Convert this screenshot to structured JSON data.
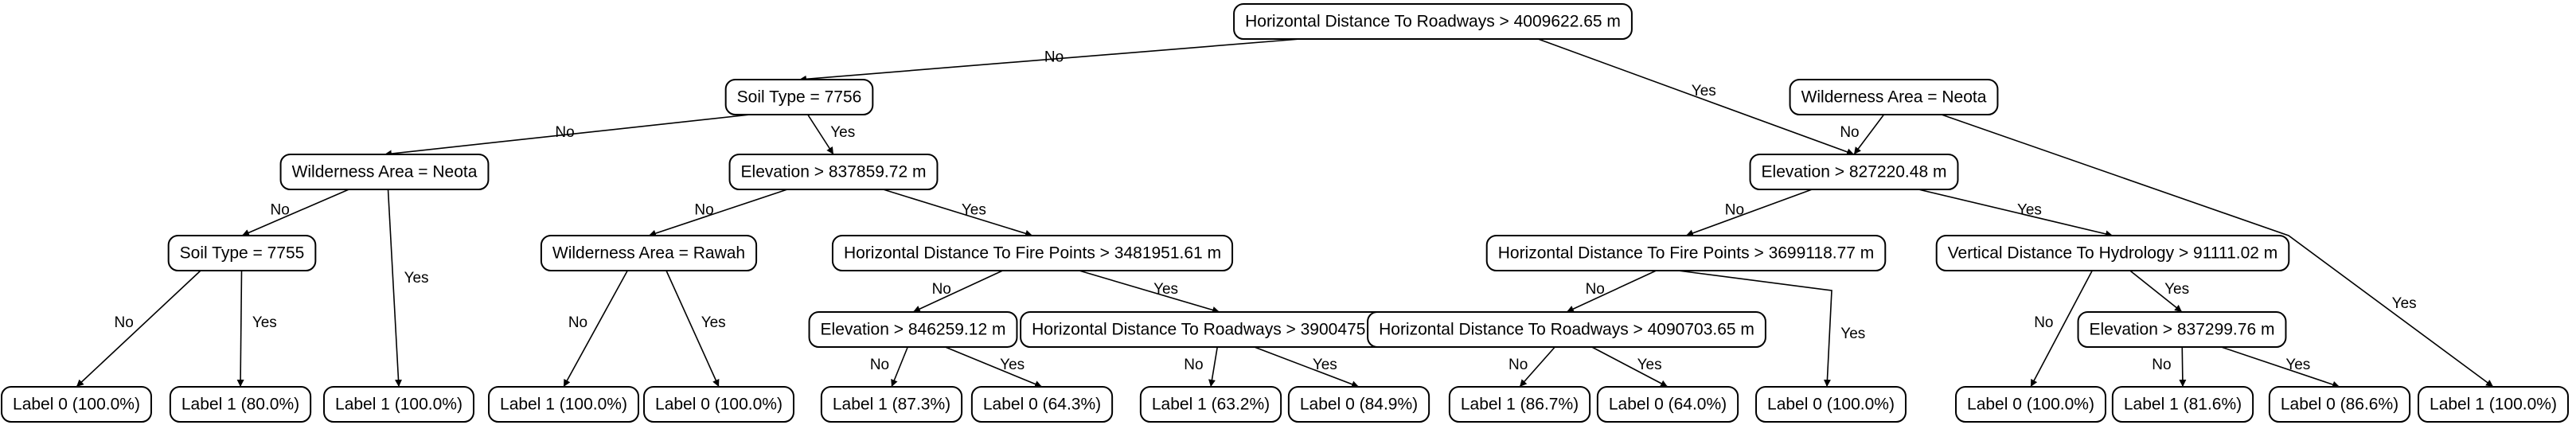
{
  "diagram": {
    "type": "decision-tree",
    "colors": {
      "line": "#000000",
      "node_fill": "#ffffff",
      "text": "#000000"
    },
    "nodes": [
      {
        "id": "n0",
        "label": "Horizontal Distance To Roadways > 4009622.65 m"
      },
      {
        "id": "n1",
        "label": "Soil Type = 7756"
      },
      {
        "id": "n2",
        "label": "Wilderness Area = Neota"
      },
      {
        "id": "n3",
        "label": "Wilderness Area = Neota"
      },
      {
        "id": "n4",
        "label": "Elevation > 837859.72 m"
      },
      {
        "id": "n5",
        "label": "Elevation > 827220.48 m"
      },
      {
        "id": "n6",
        "label": "Soil Type = 7755"
      },
      {
        "id": "n7",
        "label": "Wilderness Area = Rawah"
      },
      {
        "id": "n8",
        "label": "Horizontal Distance To Fire Points > 3481951.61 m"
      },
      {
        "id": "n9",
        "label": "Horizontal Distance To Fire Points > 3699118.77 m"
      },
      {
        "id": "n10",
        "label": "Vertical Distance To Hydrology > 91111.02 m"
      },
      {
        "id": "n11",
        "label": "Elevation > 846259.12 m"
      },
      {
        "id": "n12",
        "label": "Horizontal Distance To Roadways > 3900475.15 m"
      },
      {
        "id": "n13",
        "label": "Horizontal Distance To Roadways > 4090703.65 m"
      },
      {
        "id": "n14",
        "label": "Elevation > 837299.76 m"
      },
      {
        "id": "l1",
        "label": "Label 0 (100.0%)"
      },
      {
        "id": "l2",
        "label": "Label 1 (80.0%)"
      },
      {
        "id": "l3",
        "label": "Label 1 (100.0%)"
      },
      {
        "id": "l4",
        "label": "Label 1 (100.0%)"
      },
      {
        "id": "l5",
        "label": "Label 0 (100.0%)"
      },
      {
        "id": "l6",
        "label": "Label 1 (87.3%)"
      },
      {
        "id": "l7",
        "label": "Label 0 (64.3%)"
      },
      {
        "id": "l8",
        "label": "Label 1 (63.2%)"
      },
      {
        "id": "l9",
        "label": "Label 0 (84.9%)"
      },
      {
        "id": "l10",
        "label": "Label 1 (86.7%)"
      },
      {
        "id": "l11",
        "label": "Label 0 (64.0%)"
      },
      {
        "id": "l12",
        "label": "Label 0 (100.0%)"
      },
      {
        "id": "l13",
        "label": "Label 0 (100.0%)"
      },
      {
        "id": "l14",
        "label": "Label 1 (81.6%)"
      },
      {
        "id": "l15",
        "label": "Label 0 (86.6%)"
      },
      {
        "id": "l16",
        "label": "Label 1 (100.0%)"
      }
    ],
    "edges": [
      {
        "from": "n0",
        "to": "n1",
        "label": "No"
      },
      {
        "from": "n0",
        "to": "n5",
        "label": "Yes"
      },
      {
        "from": "n1",
        "to": "n2",
        "label": "No"
      },
      {
        "from": "n1",
        "to": "n4",
        "label": "Yes"
      },
      {
        "from": "n2",
        "to": "n6",
        "label": "No"
      },
      {
        "from": "n2",
        "to": "l3",
        "label": "Yes"
      },
      {
        "from": "n6",
        "to": "l1",
        "label": "No"
      },
      {
        "from": "n6",
        "to": "l2",
        "label": "Yes"
      },
      {
        "from": "n4",
        "to": "n7",
        "label": "No"
      },
      {
        "from": "n4",
        "to": "n8",
        "label": "Yes"
      },
      {
        "from": "n7",
        "to": "l4",
        "label": "No"
      },
      {
        "from": "n7",
        "to": "l5",
        "label": "Yes"
      },
      {
        "from": "n8",
        "to": "n11",
        "label": "No"
      },
      {
        "from": "n8",
        "to": "n12",
        "label": "Yes"
      },
      {
        "from": "n11",
        "to": "l6",
        "label": "No"
      },
      {
        "from": "n11",
        "to": "l7",
        "label": "Yes"
      },
      {
        "from": "n12",
        "to": "l8",
        "label": "No"
      },
      {
        "from": "n12",
        "to": "l9",
        "label": "Yes"
      },
      {
        "from": "n3",
        "to": "n5",
        "label": "No"
      },
      {
        "from": "n3",
        "to": "l16",
        "label": "Yes"
      },
      {
        "from": "n5",
        "to": "n9",
        "label": "No"
      },
      {
        "from": "n5",
        "to": "n10",
        "label": "Yes"
      },
      {
        "from": "n9",
        "to": "n13",
        "label": "No"
      },
      {
        "from": "n9",
        "to": "l12",
        "label": "Yes"
      },
      {
        "from": "n13",
        "to": "l10",
        "label": "No"
      },
      {
        "from": "n13",
        "to": "l11",
        "label": "Yes"
      },
      {
        "from": "n10",
        "to": "l13",
        "label": "No"
      },
      {
        "from": "n10",
        "to": "n14",
        "label": "Yes"
      },
      {
        "from": "n14",
        "to": "l14",
        "label": "No"
      },
      {
        "from": "n14",
        "to": "l15",
        "label": "Yes"
      }
    ]
  }
}
